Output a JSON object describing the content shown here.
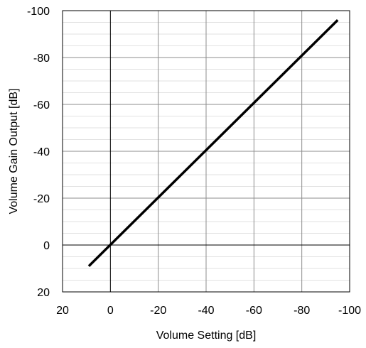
{
  "chart_data": {
    "type": "line",
    "xlabel": "Volume Setting [dB]",
    "ylabel": "Volume Gain Output [dB]",
    "xlim": [
      20,
      -100
    ],
    "ylim": [
      20,
      -100
    ],
    "x_ticks": [
      "20",
      "0",
      "-20",
      "-40",
      "-60",
      "-80",
      "-100"
    ],
    "y_ticks": [
      "-100",
      "-80",
      "-60",
      "-40",
      "-20",
      "0",
      "20"
    ],
    "grid": true,
    "series": [
      {
        "x": [
          9,
          -95
        ],
        "y": [
          9,
          -96
        ]
      }
    ]
  }
}
